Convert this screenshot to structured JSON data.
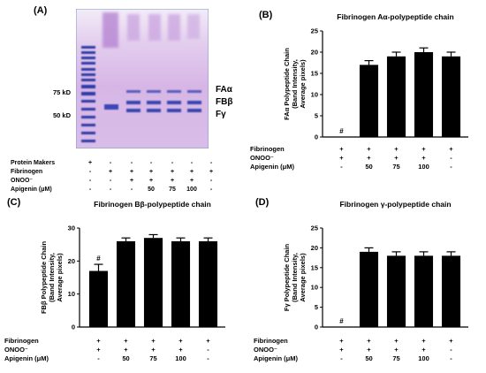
{
  "panel_a": {
    "letter": "(A)",
    "markers": [
      "75 kD",
      "50 kD"
    ],
    "bands": [
      "FAα",
      "FBβ",
      "Fγ"
    ],
    "rows": [
      {
        "label": "Protein Makers",
        "cells": [
          "+",
          "-",
          "-",
          "-",
          "-",
          "-",
          "-"
        ]
      },
      {
        "label": "Fibrinogen",
        "cells": [
          "-",
          "+",
          "+",
          "+",
          "+",
          "+",
          "+"
        ]
      },
      {
        "label": "ONOO⁻",
        "cells": [
          "-",
          "-",
          "+",
          "+",
          "+",
          "+",
          "-"
        ]
      },
      {
        "label": "Apigenin (μM)",
        "cells": [
          "-",
          "-",
          "-",
          "50",
          "75",
          "100",
          "-"
        ]
      }
    ]
  },
  "chart_data": [
    {
      "type": "bar",
      "letter": "(B)",
      "title": "Fibrinogen Aα-polypeptide chain",
      "ylabel_lines": [
        "FAα Polypeptide Chain",
        "(Band Intensity,",
        "Average pixels)"
      ],
      "ylim": [
        0,
        25
      ],
      "yticks": [
        0,
        5,
        10,
        15,
        20,
        25
      ],
      "values": [
        0,
        17,
        19,
        20,
        19
      ],
      "errors": [
        0,
        1,
        1,
        1,
        1
      ],
      "annotations": [
        "#",
        "",
        "",
        "",
        ""
      ],
      "rows": [
        {
          "label": "Fibrinogen",
          "cells": [
            "+",
            "+",
            "+",
            "+",
            "+"
          ]
        },
        {
          "label": "ONOO⁻",
          "cells": [
            "+",
            "+",
            "+",
            "+",
            "-"
          ]
        },
        {
          "label": "Apigenin (μM)",
          "cells": [
            "-",
            "50",
            "75",
            "100",
            "-"
          ]
        }
      ]
    },
    {
      "type": "bar",
      "letter": "(C)",
      "title": "Fibrinogen Bβ-polypeptide chain",
      "ylabel_lines": [
        "FBβ Polypeptide Chain",
        "(Band Intensity,",
        "Average pixels)"
      ],
      "ylim": [
        0,
        30
      ],
      "yticks": [
        0,
        10,
        20,
        30
      ],
      "values": [
        17,
        26,
        27,
        26,
        26
      ],
      "errors": [
        2,
        1,
        1,
        1,
        1
      ],
      "annotations": [
        "#",
        "",
        "",
        "",
        ""
      ],
      "rows": [
        {
          "label": "Fibrinogen",
          "cells": [
            "+",
            "+",
            "+",
            "+",
            "+"
          ]
        },
        {
          "label": "ONOO⁻",
          "cells": [
            "+",
            "+",
            "+",
            "+",
            "-"
          ]
        },
        {
          "label": "Apigenin (μM)",
          "cells": [
            "-",
            "50",
            "75",
            "100",
            "-"
          ]
        }
      ]
    },
    {
      "type": "bar",
      "letter": "(D)",
      "title": "Fibrinogen γ-polypeptide chain",
      "ylabel_lines": [
        "Fγ Polypeptide Chain",
        "(Band Intensity,",
        "Average pixels)"
      ],
      "ylim": [
        0,
        25
      ],
      "yticks": [
        0,
        5,
        10,
        15,
        20,
        25
      ],
      "values": [
        0,
        19,
        18,
        18,
        18
      ],
      "errors": [
        0,
        1,
        1,
        1,
        1
      ],
      "annotations": [
        "#",
        "",
        "",
        "",
        ""
      ],
      "rows": [
        {
          "label": "Fibrinogen",
          "cells": [
            "+",
            "+",
            "+",
            "+",
            "+"
          ]
        },
        {
          "label": "ONOO⁻",
          "cells": [
            "+",
            "+",
            "+",
            "+",
            "-"
          ]
        },
        {
          "label": "Apigenin (μM)",
          "cells": [
            "-",
            "50",
            "75",
            "100",
            "-"
          ]
        }
      ]
    }
  ]
}
